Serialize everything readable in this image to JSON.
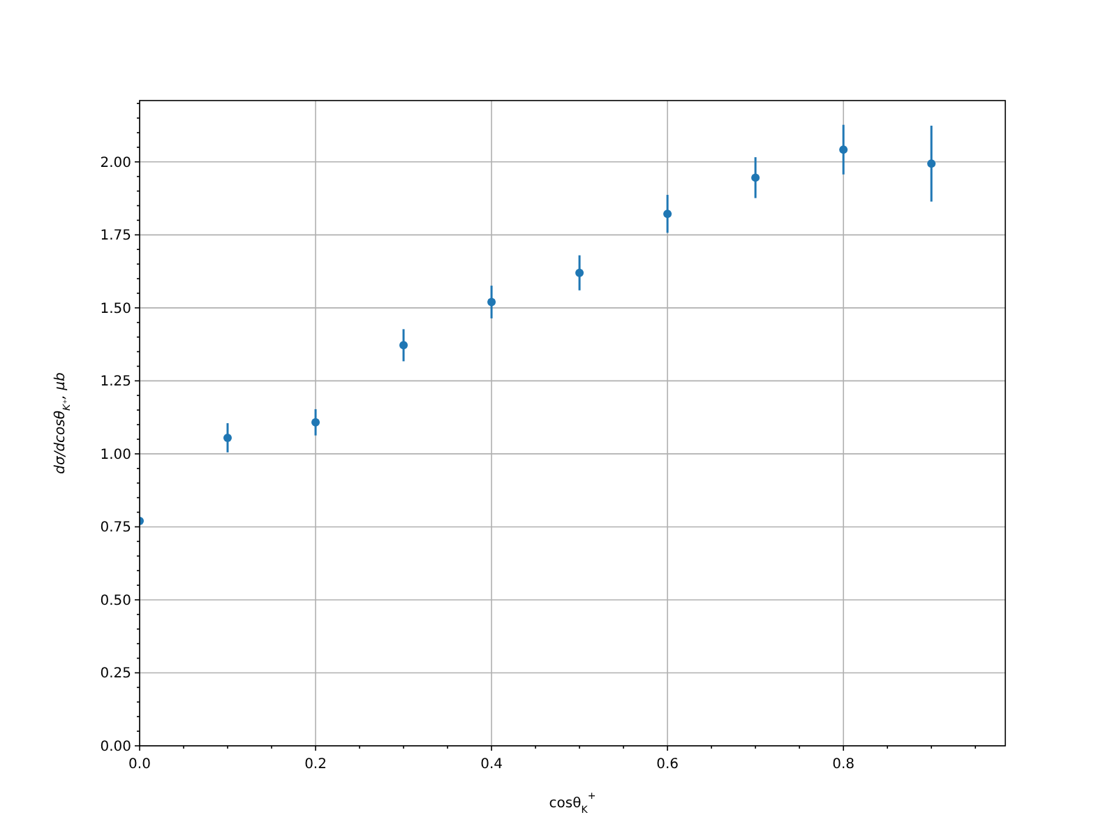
{
  "chart_data": {
    "type": "scatter",
    "xlabel": "cosθ$_{K}$$^{+}$",
    "ylabel": "dσ/dcosθ$_{K⁺}$, μb",
    "x": [
      0,
      0.1,
      0.2,
      0.3,
      0.4,
      0.5,
      0.6,
      0.7,
      0.8,
      0.9
    ],
    "series": [
      {
        "color": "#1f77b4",
        "values": [
          0.77,
          1.055,
          1.108,
          1.372,
          1.52,
          1.62,
          1.822,
          1.946,
          2.042,
          1.994
        ],
        "errors": [
          null,
          0.05,
          0.045,
          0.055,
          0.056,
          0.06,
          0.065,
          0.07,
          0.085,
          0.13
        ]
      }
    ],
    "xlim": [
      0,
      0.984
    ],
    "ylim": [
      0,
      2.21
    ],
    "xticks": [
      {
        "value": 0,
        "label": "0.0"
      },
      {
        "value": 0.05,
        "label": null
      },
      {
        "value": 0.1,
        "label": null
      },
      {
        "value": 0.15,
        "label": null
      },
      {
        "value": 0.2,
        "label": "0.2"
      },
      {
        "value": 0.25,
        "label": null
      },
      {
        "value": 0.3,
        "label": null
      },
      {
        "value": 0.35,
        "label": null
      },
      {
        "value": 0.4,
        "label": "0.4"
      },
      {
        "value": 0.45,
        "label": null
      },
      {
        "value": 0.5,
        "label": null
      },
      {
        "value": 0.55,
        "label": null
      },
      {
        "value": 0.6,
        "label": "0.6"
      },
      {
        "value": 0.65,
        "label": null
      },
      {
        "value": 0.7,
        "label": null
      },
      {
        "value": 0.75,
        "label": null
      },
      {
        "value": 0.8,
        "label": "0.8"
      },
      {
        "value": 0.85,
        "label": null
      },
      {
        "value": 0.9,
        "label": null
      },
      {
        "value": 0.95,
        "label": null
      }
    ],
    "yticks": [
      {
        "value": 0,
        "label": "0.00"
      },
      {
        "value": 0.05,
        "label": null
      },
      {
        "value": 0.1,
        "label": null
      },
      {
        "value": 0.15,
        "label": null
      },
      {
        "value": 0.2,
        "label": null
      },
      {
        "value": 0.25,
        "label": "0.25"
      },
      {
        "value": 0.3,
        "label": null
      },
      {
        "value": 0.35,
        "label": null
      },
      {
        "value": 0.4,
        "label": null
      },
      {
        "value": 0.45,
        "label": null
      },
      {
        "value": 0.5,
        "label": "0.50"
      },
      {
        "value": 0.55,
        "label": null
      },
      {
        "value": 0.6,
        "label": null
      },
      {
        "value": 0.65,
        "label": null
      },
      {
        "value": 0.7,
        "label": null
      },
      {
        "value": 0.75,
        "label": "0.75"
      },
      {
        "value": 0.8,
        "label": null
      },
      {
        "value": 0.85,
        "label": null
      },
      {
        "value": 0.9,
        "label": null
      },
      {
        "value": 0.95,
        "label": null
      },
      {
        "value": 1,
        "label": "1.00"
      },
      {
        "value": 1.05,
        "label": null
      },
      {
        "value": 1.1,
        "label": null
      },
      {
        "value": 1.15,
        "label": null
      },
      {
        "value": 1.2,
        "label": null
      },
      {
        "value": 1.25,
        "label": "1.25"
      },
      {
        "value": 1.3,
        "label": null
      },
      {
        "value": 1.35,
        "label": null
      },
      {
        "value": 1.4,
        "label": null
      },
      {
        "value": 1.45,
        "label": null
      },
      {
        "value": 1.5,
        "label": "1.50"
      },
      {
        "value": 1.55,
        "label": null
      },
      {
        "value": 1.6,
        "label": null
      },
      {
        "value": 1.65,
        "label": null
      },
      {
        "value": 1.7,
        "label": null
      },
      {
        "value": 1.75,
        "label": "1.75"
      },
      {
        "value": 1.8,
        "label": null
      },
      {
        "value": 1.85,
        "label": null
      },
      {
        "value": 1.9,
        "label": null
      },
      {
        "value": 1.95,
        "label": null
      },
      {
        "value": 2,
        "label": "2.00"
      },
      {
        "value": 2.05,
        "label": null
      },
      {
        "value": 2.1,
        "label": null
      },
      {
        "value": 2.15,
        "label": null
      },
      {
        "value": 2.2,
        "label": null
      }
    ],
    "grid": true,
    "marker": "circle"
  }
}
